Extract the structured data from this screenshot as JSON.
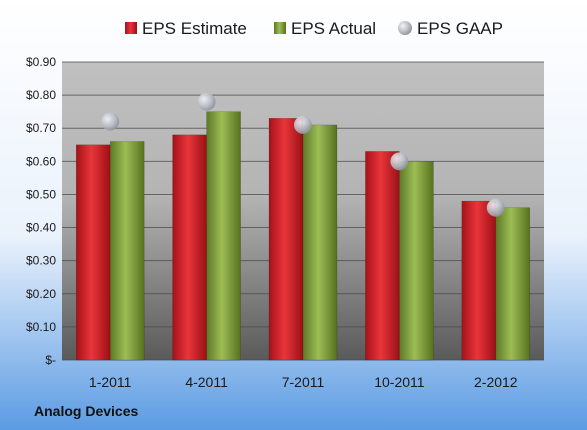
{
  "chart_data": {
    "type": "bar",
    "categories": [
      "1-2011",
      "4-2011",
      "7-2011",
      "10-2011",
      "2-2012"
    ],
    "series": [
      {
        "name": "EPS Estimate",
        "kind": "bar",
        "color": "#d2232a",
        "values": [
          0.65,
          0.68,
          0.73,
          0.63,
          0.48
        ]
      },
      {
        "name": "EPS Actual",
        "kind": "bar",
        "color": "#7a9a3a",
        "values": [
          0.66,
          0.75,
          0.71,
          0.6,
          0.46
        ]
      },
      {
        "name": "EPS GAAP",
        "kind": "marker",
        "color": "#b8bcc4",
        "values": [
          0.72,
          0.78,
          0.71,
          0.6,
          0.46
        ]
      }
    ],
    "ylim": [
      0,
      0.9
    ],
    "yticks": [
      0,
      0.1,
      0.2,
      0.3,
      0.4,
      0.5,
      0.6,
      0.7,
      0.8,
      0.9
    ],
    "ytick_labels": [
      "$-",
      "$0.10",
      "$0.20",
      "$0.30",
      "$0.40",
      "$0.50",
      "$0.60",
      "$0.70",
      "$0.80",
      "$0.90"
    ],
    "grid": true,
    "legend_position": "top",
    "source_label": "Analog Devices"
  },
  "colors": {
    "background_top": "#ffffff",
    "background_bottom": "#5b9be3",
    "plot_top": "#c0c0c0",
    "plot_bottom": "#5a5a5a",
    "gridline": "#4a4a4a"
  }
}
